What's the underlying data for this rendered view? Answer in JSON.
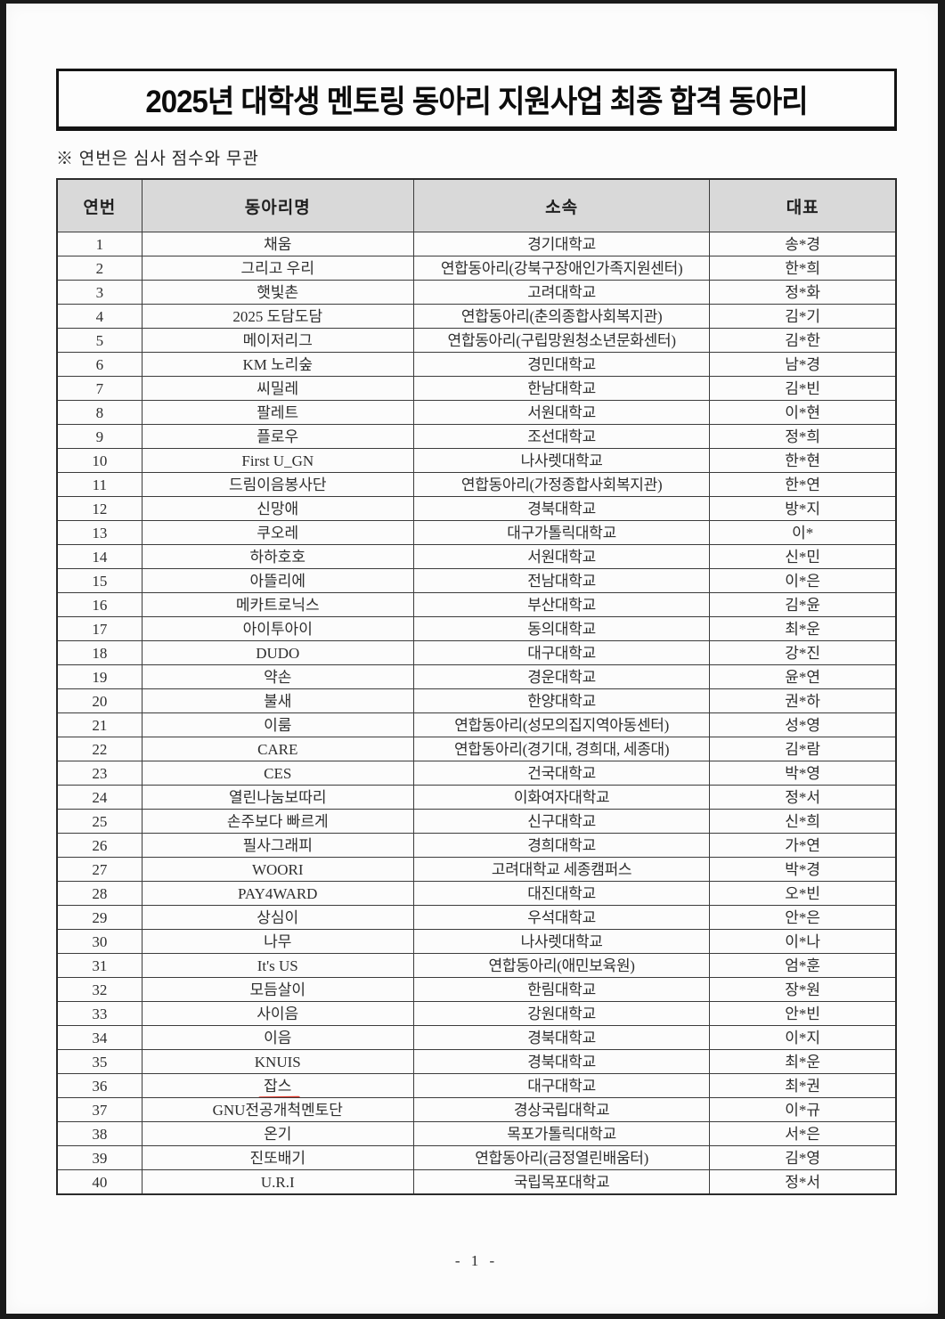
{
  "page": {
    "title": "2025년 대학생 멘토링 동아리 지원사업 최종 합격 동아리",
    "note": "※ 연번은 심사 점수와 무관",
    "page_number": "- 1 -"
  },
  "colors": {
    "paper": "#fcfcfc",
    "frame": "#1a1a1a",
    "header_bg": "#d9d9d9",
    "underline_red": "#e03528"
  },
  "table": {
    "headers": [
      "연번",
      "동아리명",
      "소속",
      "대표"
    ],
    "rows": [
      {
        "no": "1",
        "club": "채움",
        "org": "경기대학교",
        "rep": "송*경"
      },
      {
        "no": "2",
        "club": "그리고 우리",
        "org": "연합동아리(강북구장애인가족지원센터)",
        "rep": "한*희"
      },
      {
        "no": "3",
        "club": "햇빛촌",
        "org": "고려대학교",
        "rep": "정*화"
      },
      {
        "no": "4",
        "club": "2025 도담도담",
        "org": "연합동아리(춘의종합사회복지관)",
        "rep": "김*기"
      },
      {
        "no": "5",
        "club": "메이저리그",
        "org": "연합동아리(구립망원청소년문화센터)",
        "rep": "김*한"
      },
      {
        "no": "6",
        "club": "KM 노리숲",
        "org": "경민대학교",
        "rep": "남*경"
      },
      {
        "no": "7",
        "club": "씨밀레",
        "org": "한남대학교",
        "rep": "김*빈"
      },
      {
        "no": "8",
        "club": "팔레트",
        "org": "서원대학교",
        "rep": "이*현"
      },
      {
        "no": "9",
        "club": "플로우",
        "org": "조선대학교",
        "rep": "정*희"
      },
      {
        "no": "10",
        "club": "First U_GN",
        "org": "나사렛대학교",
        "rep": "한*현"
      },
      {
        "no": "11",
        "club": "드림이음봉사단",
        "org": "연합동아리(가정종합사회복지관)",
        "rep": "한*연"
      },
      {
        "no": "12",
        "club": "신망애",
        "org": "경북대학교",
        "rep": "방*지"
      },
      {
        "no": "13",
        "club": "쿠오레",
        "org": "대구가톨릭대학교",
        "rep": "이*"
      },
      {
        "no": "14",
        "club": "하하호호",
        "org": "서원대학교",
        "rep": "신*민"
      },
      {
        "no": "15",
        "club": "아뜰리에",
        "org": "전남대학교",
        "rep": "이*은"
      },
      {
        "no": "16",
        "club": "메카트로닉스",
        "org": "부산대학교",
        "rep": "김*윤"
      },
      {
        "no": "17",
        "club": "아이투아이",
        "org": "동의대학교",
        "rep": "최*운"
      },
      {
        "no": "18",
        "club": "DUDO",
        "org": "대구대학교",
        "rep": "강*진"
      },
      {
        "no": "19",
        "club": "약손",
        "org": "경운대학교",
        "rep": "윤*연"
      },
      {
        "no": "20",
        "club": "불새",
        "org": "한양대학교",
        "rep": "권*하"
      },
      {
        "no": "21",
        "club": "이룸",
        "org": "연합동아리(성모의집지역아동센터)",
        "rep": "성*영"
      },
      {
        "no": "22",
        "club": "CARE",
        "org": "연합동아리(경기대, 경희대, 세종대)",
        "rep": "김*람"
      },
      {
        "no": "23",
        "club": "CES",
        "org": "건국대학교",
        "rep": "박*영"
      },
      {
        "no": "24",
        "club": "열린나눔보따리",
        "org": "이화여자대학교",
        "rep": "정*서"
      },
      {
        "no": "25",
        "club": "손주보다 빠르게",
        "org": "신구대학교",
        "rep": "신*희"
      },
      {
        "no": "26",
        "club": "필사그래피",
        "org": "경희대학교",
        "rep": "가*연"
      },
      {
        "no": "27",
        "club": "WOORI",
        "org": "고려대학교 세종캠퍼스",
        "rep": "박*경"
      },
      {
        "no": "28",
        "club": "PAY4WARD",
        "org": "대진대학교",
        "rep": "오*빈"
      },
      {
        "no": "29",
        "club": "상심이",
        "org": "우석대학교",
        "rep": "안*은"
      },
      {
        "no": "30",
        "club": "나무",
        "org": "나사렛대학교",
        "rep": "이*나"
      },
      {
        "no": "31",
        "club": "It's US",
        "org": "연합동아리(애민보육원)",
        "rep": "엄*훈"
      },
      {
        "no": "32",
        "club": "모듬살이",
        "org": "한림대학교",
        "rep": "장*원"
      },
      {
        "no": "33",
        "club": "사이음",
        "org": "강원대학교",
        "rep": "안*빈"
      },
      {
        "no": "34",
        "club": "이음",
        "org": "경북대학교",
        "rep": "이*지"
      },
      {
        "no": "35",
        "club": "KNUIS",
        "org": "경북대학교",
        "rep": "최*운"
      },
      {
        "no": "36",
        "club": "잡스",
        "org": "대구대학교",
        "rep": "최*권",
        "underlined": true
      },
      {
        "no": "37",
        "club": "GNU전공개척멘토단",
        "org": "경상국립대학교",
        "rep": "이*규"
      },
      {
        "no": "38",
        "club": "온기",
        "org": "목포가톨릭대학교",
        "rep": "서*은"
      },
      {
        "no": "39",
        "club": "진또배기",
        "org": "연합동아리(금정열린배움터)",
        "rep": "김*영"
      },
      {
        "no": "40",
        "club": "U.R.I",
        "org": "국립목포대학교",
        "rep": "정*서"
      }
    ]
  }
}
